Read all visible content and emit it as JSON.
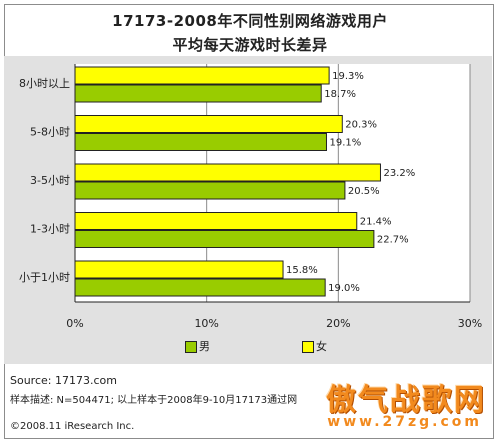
{
  "title_line1": "17173-2008年不同性别网络游戏用户",
  "title_line2": "平均每天游戏时长差异",
  "chart_data": {
    "type": "bar",
    "orientation": "horizontal",
    "categories": [
      "8小时以上",
      "5-8小时",
      "3-5小时",
      "1-3小时",
      "小于1小时"
    ],
    "series": [
      {
        "name": "女",
        "color": "#ffff00",
        "values": [
          19.3,
          20.3,
          23.2,
          21.4,
          15.8
        ],
        "labels": [
          "19.3%",
          "20.3%",
          "23.2%",
          "21.4%",
          "15.8%"
        ]
      },
      {
        "name": "男",
        "color": "#99cc00",
        "values": [
          18.7,
          19.1,
          20.5,
          22.7,
          19.0
        ],
        "labels": [
          "18.7%",
          "19.1%",
          "20.5%",
          "22.7%",
          "19.0%"
        ]
      }
    ],
    "xlim": [
      0,
      30
    ],
    "ticks": [
      0,
      10,
      20,
      30
    ],
    "tick_labels": [
      "0%",
      "10%",
      "20%",
      "30%"
    ],
    "grid": true,
    "legend_placement": "bottom"
  },
  "legend": {
    "male_label": "男",
    "female_label": "女",
    "male_color": "#99cc00",
    "female_color": "#ffff00"
  },
  "footer": {
    "source": "Source:  17173.com",
    "sample": "样本描述:  N=504471;  以上样本于2008年9-10月17173通过网",
    "copyright": "©2008.11 iResearch Inc."
  },
  "watermark": {
    "text": "傲气战歌网",
    "url": "www.27zg.com"
  }
}
